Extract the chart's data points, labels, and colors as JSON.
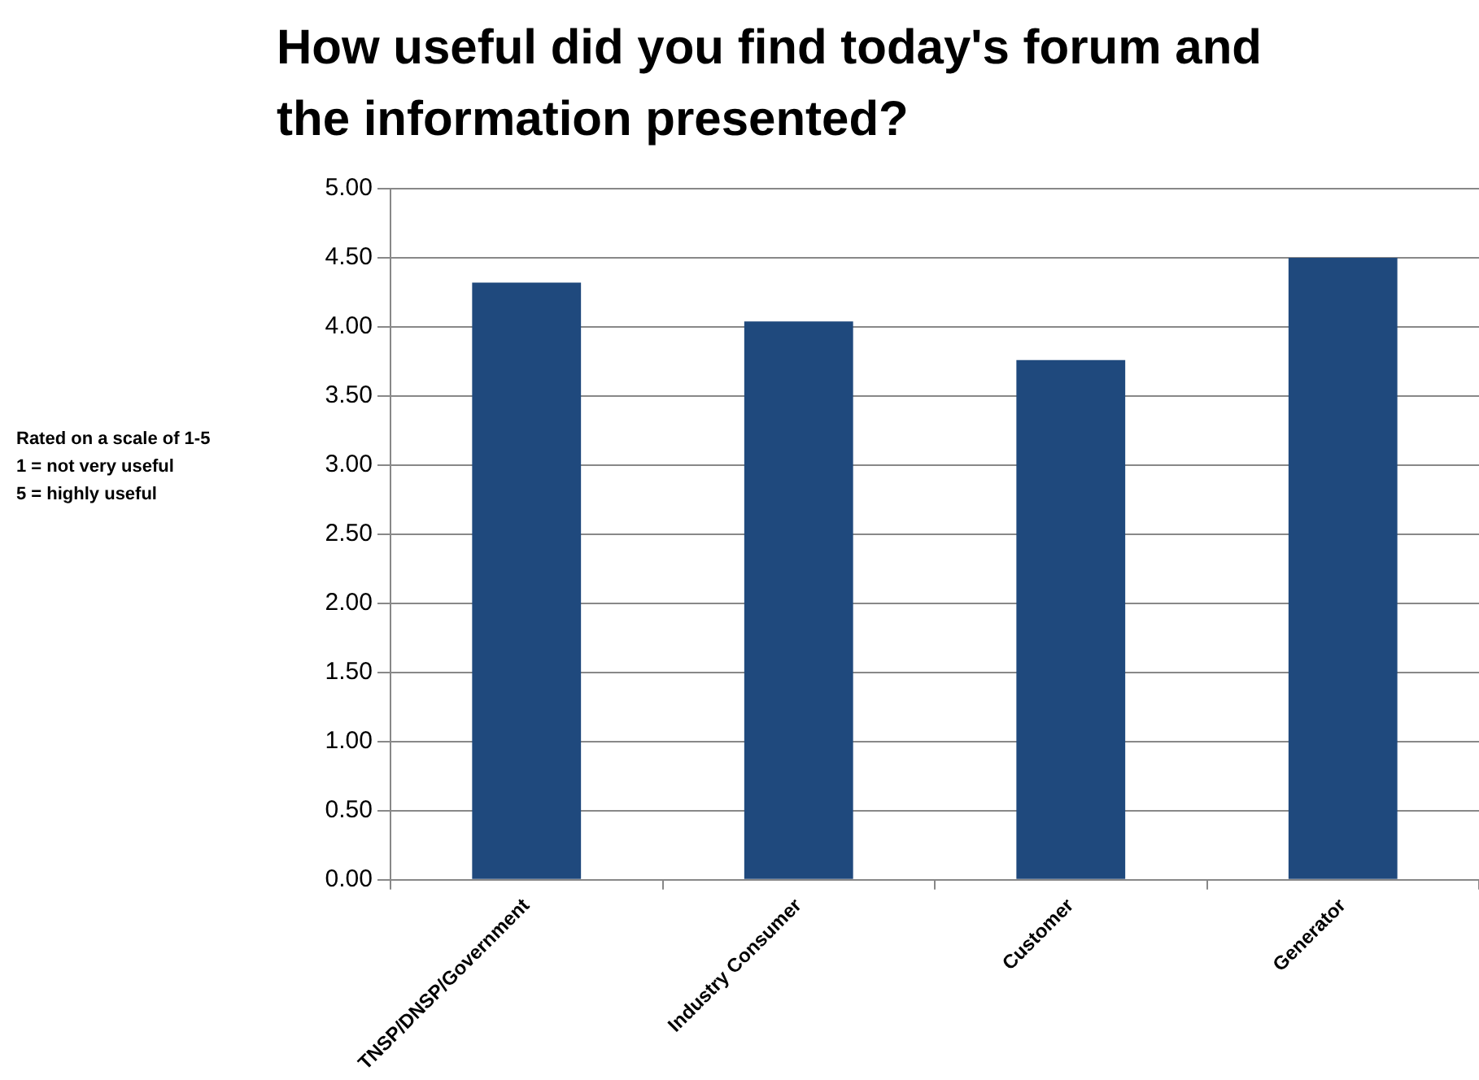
{
  "chart_data": {
    "type": "bar",
    "title": "How useful did you find today's forum and the information presented?",
    "categories": [
      "TNSP/DNSP/Government",
      "Industry Consumer",
      "Customer",
      "Generator"
    ],
    "values": [
      4.32,
      4.04,
      3.76,
      4.5
    ],
    "color": "#1f497d",
    "ylim": [
      0,
      5
    ],
    "yticks": [
      {
        "value": 0,
        "label": "0.00"
      },
      {
        "value": 0.5,
        "label": "0.50"
      },
      {
        "value": 1,
        "label": "1.00"
      },
      {
        "value": 1.5,
        "label": "1.50"
      },
      {
        "value": 2,
        "label": "2.00"
      },
      {
        "value": 2.5,
        "label": "2.50"
      },
      {
        "value": 3,
        "label": "3.00"
      },
      {
        "value": 3.5,
        "label": "3.50"
      },
      {
        "value": 4,
        "label": "4.00"
      },
      {
        "value": 4.5,
        "label": "4.50"
      },
      {
        "value": 5,
        "label": "5.00"
      }
    ],
    "grid": "y",
    "annotations": [
      "Rated on a scale of 1-5\n1 = not very useful\n5 = highly useful"
    ]
  }
}
